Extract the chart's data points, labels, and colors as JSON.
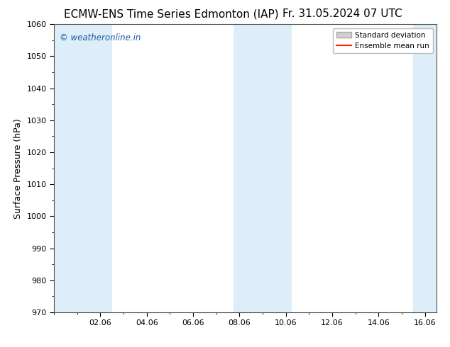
{
  "title_left": "ECMW-ENS Time Series Edmonton (IAP)",
  "title_right": "Fr. 31.05.2024 07 UTC",
  "ylabel": "Surface Pressure (hPa)",
  "ylim": [
    970,
    1060
  ],
  "yticks": [
    970,
    980,
    990,
    1000,
    1010,
    1020,
    1030,
    1040,
    1050,
    1060
  ],
  "xtick_labels": [
    "02.06",
    "04.06",
    "06.06",
    "08.06",
    "10.06",
    "12.06",
    "14.06",
    "16.06"
  ],
  "xtick_positions": [
    2,
    4,
    6,
    8,
    10,
    12,
    14,
    16
  ],
  "xlim": [
    0,
    16.5
  ],
  "shaded_bands": [
    {
      "x_start": 0.0,
      "x_end": 2.5
    },
    {
      "x_start": 7.75,
      "x_end": 10.25
    },
    {
      "x_start": 15.5,
      "x_end": 16.5
    }
  ],
  "shade_color": "#ddeef8",
  "watermark_text": "© weatheronline.in",
  "watermark_color": "#1a5aa0",
  "legend_std_label": "Standard deviation",
  "legend_mean_label": "Ensemble mean run",
  "legend_std_facecolor": "#d0d0d0",
  "legend_std_edgecolor": "#aaaaaa",
  "legend_mean_color": "#ff2200",
  "background_color": "#ffffff",
  "title_fontsize": 11,
  "label_fontsize": 9,
  "tick_fontsize": 8,
  "watermark_fontsize": 8.5
}
